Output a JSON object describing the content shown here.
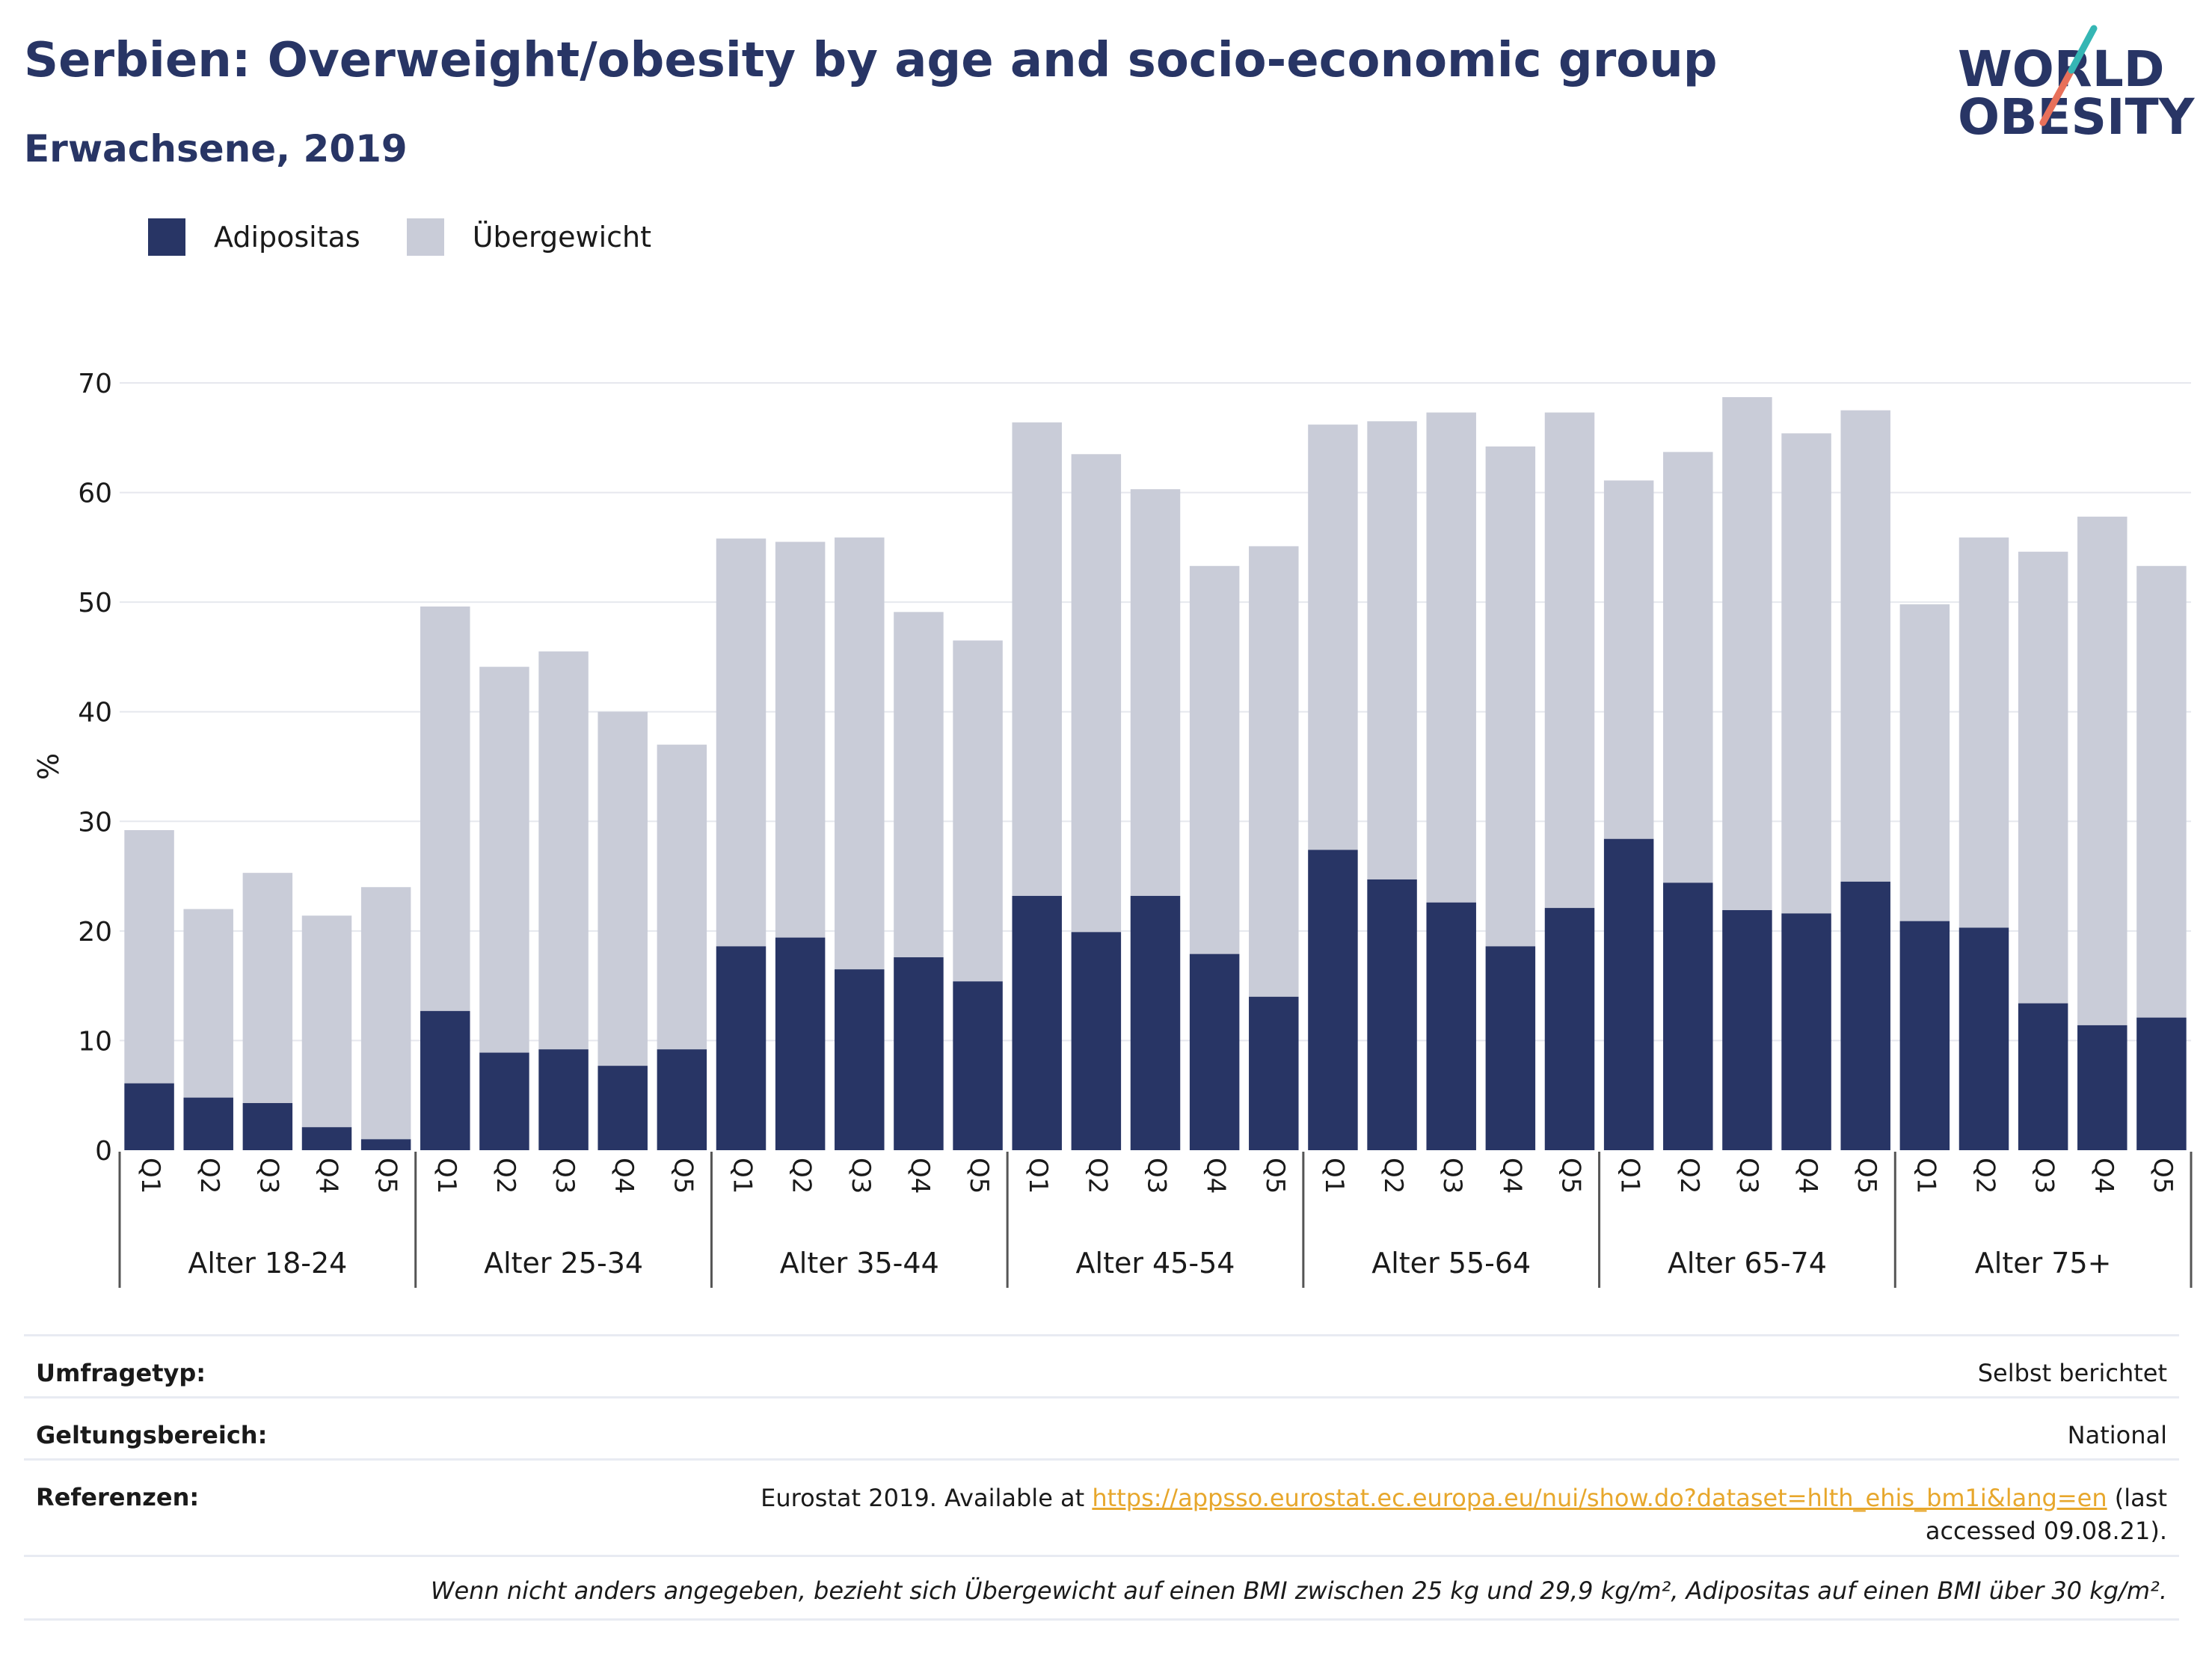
{
  "title": "Serbien: Overweight/obesity by age and socio-economic group",
  "subtitle": "Erwachsene, 2019",
  "logo": {
    "line1": "WORLD",
    "line2": "OBESITY"
  },
  "colors": {
    "obesity": "#283565",
    "overweight": "#c9ccd8",
    "title": "#283565",
    "link": "#e7a72c",
    "logo_teal": "#35b6b4",
    "logo_coral": "#e8705a"
  },
  "legend": [
    {
      "name": "Adipositas",
      "color": "#283565"
    },
    {
      "name": "Übergewicht",
      "color": "#c9ccd8"
    }
  ],
  "chart_data": {
    "type": "bar",
    "stacked": true,
    "ylabel": "%",
    "ylim": [
      0,
      70
    ],
    "yticks": [
      0,
      10,
      20,
      30,
      40,
      50,
      60,
      70
    ],
    "grid": true,
    "legend_position": "top-left",
    "groups": [
      "Alter 18-24",
      "Alter 25-34",
      "Alter 35-44",
      "Alter 45-54",
      "Alter 55-64",
      "Alter 65-74",
      "Alter 75+"
    ],
    "quintiles": [
      "Q1",
      "Q2",
      "Q3",
      "Q4",
      "Q5"
    ],
    "series": [
      {
        "name": "Adipositas",
        "values": [
          6.1,
          4.8,
          4.3,
          2.1,
          1.0,
          12.7,
          8.9,
          9.2,
          7.7,
          9.2,
          18.6,
          19.4,
          16.5,
          17.6,
          15.4,
          23.2,
          19.9,
          23.2,
          17.9,
          14.0,
          27.4,
          24.7,
          22.6,
          18.6,
          22.1,
          28.4,
          24.4,
          21.9,
          21.6,
          24.5,
          20.9,
          20.3,
          13.4,
          11.4,
          12.1
        ]
      },
      {
        "name": "Übergewicht",
        "values": [
          23.1,
          17.2,
          21.0,
          19.3,
          23.0,
          36.9,
          35.2,
          36.3,
          32.3,
          27.8,
          37.2,
          36.1,
          39.4,
          31.5,
          31.1,
          43.2,
          43.6,
          37.1,
          35.4,
          41.1,
          38.8,
          41.8,
          44.7,
          45.6,
          45.2,
          32.7,
          39.3,
          46.8,
          43.8,
          43.0,
          28.9,
          35.6,
          41.2,
          46.4,
          41.2
        ]
      }
    ]
  },
  "info": {
    "survey_label": "Umfragetyp:",
    "survey_value": "Selbst berichtet",
    "coverage_label": "Geltungsbereich:",
    "coverage_value": "National",
    "references_label": "Referenzen:",
    "references_prefix": "Eurostat 2019. Available at ",
    "references_link": "https://appsso.eurostat.ec.europa.eu/nui/show.do?dataset=hlth_ehis_bm1i&lang=en",
    "references_suffix": " (last accessed 09.08.21).",
    "note": "Wenn nicht anders angegeben, bezieht sich Übergewicht auf einen BMI zwischen 25 kg und 29,9 kg/m², Adipositas auf einen BMI über 30 kg/m²."
  }
}
